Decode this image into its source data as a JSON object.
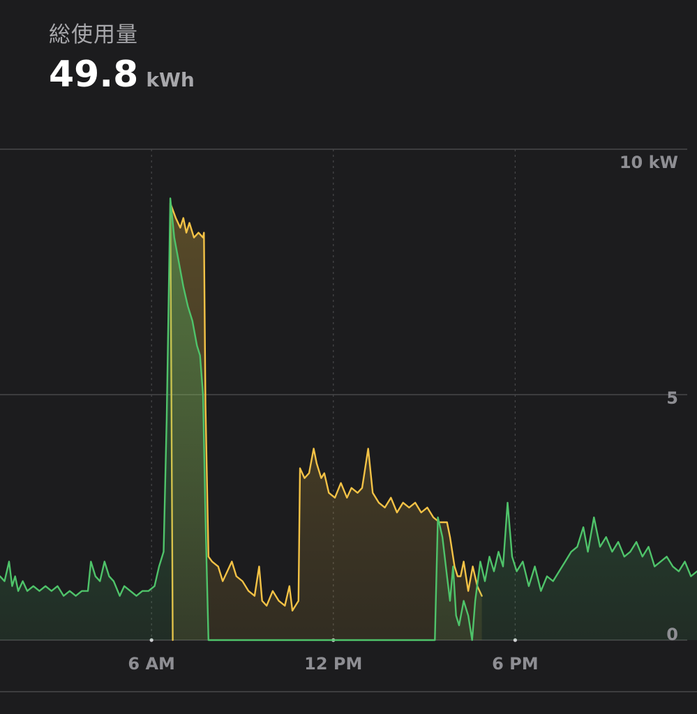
{
  "summary": {
    "title": "総使用量",
    "value": "49.8",
    "unit": "kWh"
  },
  "colors": {
    "background": "#1c1c1e",
    "grid": "#48484a",
    "home": "#4fc36a",
    "solar": "#f3c246"
  },
  "chart_data": {
    "type": "area",
    "title": "",
    "xlabel": "",
    "ylabel": "",
    "x_start_hour": 1.0,
    "x_end_hour": 24.0,
    "xticks": [
      {
        "hour": 6,
        "label": "6 AM"
      },
      {
        "hour": 12,
        "label": "12 PM"
      },
      {
        "hour": 18,
        "label": "6 PM"
      }
    ],
    "ylim": [
      0,
      10
    ],
    "yticks": [
      {
        "value": 10,
        "label": "10 kW"
      },
      {
        "value": 5,
        "label": "5"
      },
      {
        "value": 0,
        "label": "0"
      }
    ],
    "grid": true,
    "series": [
      {
        "key": "solar",
        "points": [
          [
            6.7,
            0.0
          ],
          [
            6.62,
            8.9
          ],
          [
            6.8,
            8.6
          ],
          [
            6.95,
            8.4
          ],
          [
            7.05,
            8.6
          ],
          [
            7.15,
            8.3
          ],
          [
            7.25,
            8.5
          ],
          [
            7.4,
            8.2
          ],
          [
            7.55,
            8.3
          ],
          [
            7.7,
            8.2
          ],
          [
            7.73,
            8.3
          ],
          [
            7.78,
            4.8
          ],
          [
            7.88,
            1.7
          ],
          [
            8.0,
            1.6
          ],
          [
            8.2,
            1.5
          ],
          [
            8.35,
            1.2
          ],
          [
            8.5,
            1.4
          ],
          [
            8.65,
            1.6
          ],
          [
            8.8,
            1.3
          ],
          [
            9.0,
            1.2
          ],
          [
            9.2,
            1.0
          ],
          [
            9.4,
            0.9
          ],
          [
            9.55,
            1.5
          ],
          [
            9.65,
            0.8
          ],
          [
            9.8,
            0.7
          ],
          [
            10.0,
            1.0
          ],
          [
            10.2,
            0.8
          ],
          [
            10.4,
            0.7
          ],
          [
            10.55,
            1.1
          ],
          [
            10.65,
            0.6
          ],
          [
            10.85,
            0.8
          ],
          [
            10.9,
            3.5
          ],
          [
            11.05,
            3.3
          ],
          [
            11.2,
            3.4
          ],
          [
            11.35,
            3.9
          ],
          [
            11.45,
            3.6
          ],
          [
            11.6,
            3.3
          ],
          [
            11.7,
            3.4
          ],
          [
            11.85,
            3.0
          ],
          [
            12.05,
            2.9
          ],
          [
            12.25,
            3.2
          ],
          [
            12.45,
            2.9
          ],
          [
            12.6,
            3.1
          ],
          [
            12.8,
            3.0
          ],
          [
            12.95,
            3.1
          ],
          [
            13.0,
            3.3
          ],
          [
            13.15,
            3.9
          ],
          [
            13.3,
            3.0
          ],
          [
            13.5,
            2.8
          ],
          [
            13.7,
            2.7
          ],
          [
            13.9,
            2.9
          ],
          [
            14.1,
            2.6
          ],
          [
            14.3,
            2.8
          ],
          [
            14.5,
            2.7
          ],
          [
            14.7,
            2.8
          ],
          [
            14.9,
            2.6
          ],
          [
            15.1,
            2.7
          ],
          [
            15.3,
            2.5
          ],
          [
            15.5,
            2.4
          ],
          [
            15.75,
            2.4
          ],
          [
            15.85,
            2.1
          ],
          [
            16.0,
            1.5
          ],
          [
            16.1,
            1.3
          ],
          [
            16.2,
            1.3
          ],
          [
            16.3,
            1.6
          ],
          [
            16.45,
            1.0
          ],
          [
            16.6,
            1.5
          ],
          [
            16.75,
            1.1
          ],
          [
            16.9,
            0.9
          ]
        ]
      },
      {
        "key": "home",
        "points": [
          [
            1.0,
            1.3
          ],
          [
            1.15,
            1.2
          ],
          [
            1.3,
            1.6
          ],
          [
            1.4,
            1.1
          ],
          [
            1.5,
            1.3
          ],
          [
            1.6,
            1.0
          ],
          [
            1.75,
            1.2
          ],
          [
            1.9,
            1.0
          ],
          [
            2.1,
            1.1
          ],
          [
            2.3,
            1.0
          ],
          [
            2.5,
            1.1
          ],
          [
            2.7,
            1.0
          ],
          [
            2.9,
            1.1
          ],
          [
            3.1,
            0.9
          ],
          [
            3.3,
            1.0
          ],
          [
            3.5,
            0.9
          ],
          [
            3.7,
            1.0
          ],
          [
            3.9,
            1.0
          ],
          [
            4.0,
            1.6
          ],
          [
            4.15,
            1.3
          ],
          [
            4.3,
            1.2
          ],
          [
            4.45,
            1.6
          ],
          [
            4.6,
            1.3
          ],
          [
            4.75,
            1.2
          ],
          [
            4.95,
            0.9
          ],
          [
            5.1,
            1.1
          ],
          [
            5.3,
            1.0
          ],
          [
            5.5,
            0.9
          ],
          [
            5.7,
            1.0
          ],
          [
            5.9,
            1.0
          ],
          [
            6.1,
            1.1
          ],
          [
            6.25,
            1.5
          ],
          [
            6.4,
            1.8
          ],
          [
            6.5,
            4.5
          ],
          [
            6.62,
            9.0
          ],
          [
            6.75,
            8.2
          ],
          [
            6.9,
            7.7
          ],
          [
            7.05,
            7.2
          ],
          [
            7.2,
            6.8
          ],
          [
            7.35,
            6.5
          ],
          [
            7.5,
            6.0
          ],
          [
            7.6,
            5.8
          ],
          [
            7.7,
            5.0
          ],
          [
            7.78,
            2.5
          ],
          [
            7.88,
            0.0
          ],
          [
            15.35,
            0.0
          ],
          [
            15.45,
            2.5
          ],
          [
            15.6,
            2.1
          ],
          [
            15.75,
            1.3
          ],
          [
            15.85,
            0.8
          ],
          [
            15.95,
            1.5
          ],
          [
            16.05,
            0.5
          ],
          [
            16.15,
            0.3
          ],
          [
            16.3,
            0.8
          ],
          [
            16.45,
            0.5
          ],
          [
            16.58,
            0.0
          ],
          [
            16.68,
            0.8
          ],
          [
            16.85,
            1.6
          ],
          [
            17.0,
            1.2
          ],
          [
            17.15,
            1.7
          ],
          [
            17.3,
            1.4
          ],
          [
            17.45,
            1.8
          ],
          [
            17.6,
            1.5
          ],
          [
            17.75,
            2.8
          ],
          [
            17.9,
            1.7
          ],
          [
            18.05,
            1.4
          ],
          [
            18.25,
            1.6
          ],
          [
            18.45,
            1.1
          ],
          [
            18.65,
            1.5
          ],
          [
            18.85,
            1.0
          ],
          [
            19.05,
            1.3
          ],
          [
            19.25,
            1.2
          ],
          [
            19.45,
            1.4
          ],
          [
            19.65,
            1.6
          ],
          [
            19.85,
            1.8
          ],
          [
            20.05,
            1.9
          ],
          [
            20.25,
            2.3
          ],
          [
            20.4,
            1.8
          ],
          [
            20.6,
            2.5
          ],
          [
            20.8,
            1.9
          ],
          [
            21.0,
            2.1
          ],
          [
            21.2,
            1.8
          ],
          [
            21.4,
            2.0
          ],
          [
            21.6,
            1.7
          ],
          [
            21.8,
            1.8
          ],
          [
            22.0,
            2.0
          ],
          [
            22.2,
            1.7
          ],
          [
            22.4,
            1.9
          ],
          [
            22.6,
            1.5
          ],
          [
            22.8,
            1.6
          ],
          [
            23.0,
            1.7
          ],
          [
            23.2,
            1.5
          ],
          [
            23.4,
            1.4
          ],
          [
            23.6,
            1.6
          ],
          [
            23.8,
            1.3
          ],
          [
            24.0,
            1.4
          ]
        ]
      }
    ]
  }
}
